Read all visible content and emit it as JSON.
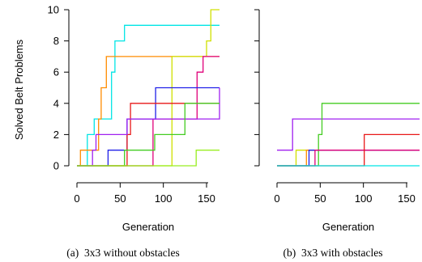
{
  "chart_data": [
    {
      "type": "line",
      "step": true,
      "caption": "(a)  3x3 without obstacles",
      "xlabel": "Generation",
      "ylabel": "Solved Belt Problems",
      "xlim": [
        0,
        165
      ],
      "ylim": [
        0,
        10
      ],
      "xticks": [
        "0",
        "50",
        "100",
        "150"
      ],
      "yticks": [
        "0",
        "2",
        "4",
        "6",
        "8",
        "10"
      ],
      "grid": false,
      "series": [
        {
          "color": "#00e5e5",
          "x": [
            0,
            10,
            12,
            20,
            38,
            40,
            44,
            51,
            55,
            165
          ],
          "y": [
            0,
            0,
            2,
            3,
            3,
            6,
            8,
            8,
            9,
            9
          ]
        },
        {
          "color": "#ff8c00",
          "x": [
            0,
            4,
            8,
            25,
            28,
            30,
            34,
            165
          ],
          "y": [
            0,
            1,
            1,
            3,
            5,
            5,
            7,
            7
          ]
        },
        {
          "color": "#d0e000",
          "x": [
            0,
            5,
            30,
            108,
            110,
            140,
            150,
            155,
            165
          ],
          "y": [
            0,
            0,
            0,
            0,
            7,
            7,
            8,
            10,
            10
          ]
        },
        {
          "color": "#e0007a",
          "x": [
            0,
            85,
            88,
            135,
            139,
            146,
            165
          ],
          "y": [
            0,
            0,
            3,
            3,
            6,
            7,
            7
          ]
        },
        {
          "color": "#2020e8",
          "x": [
            0,
            32,
            36,
            55,
            58,
            88,
            91,
            165
          ],
          "y": [
            0,
            0,
            1,
            1,
            3,
            3,
            5,
            5
          ]
        },
        {
          "color": "#e81818",
          "x": [
            0,
            25,
            58,
            62,
            88,
            165
          ],
          "y": [
            0,
            0,
            2,
            4,
            4,
            4
          ]
        },
        {
          "color": "#a020f0",
          "x": [
            0,
            18,
            22,
            52,
            58,
            163,
            165
          ],
          "y": [
            0,
            1,
            2,
            2,
            3,
            3,
            5
          ]
        },
        {
          "color": "#44cc22",
          "x": [
            0,
            40,
            55,
            60,
            90,
            95,
            120,
            125,
            165
          ],
          "y": [
            0,
            0,
            1,
            1,
            2,
            2,
            2,
            4,
            4
          ]
        },
        {
          "color": "#99ee22",
          "x": [
            0,
            135,
            138,
            165
          ],
          "y": [
            0,
            0,
            1,
            1
          ]
        }
      ]
    },
    {
      "type": "line",
      "step": true,
      "caption": "(b)  3x3 with obstacles",
      "xlabel": "Generation",
      "ylabel": "",
      "xlim": [
        0,
        165
      ],
      "ylim": [
        0,
        10
      ],
      "xticks": [
        "0",
        "50",
        "100",
        "150"
      ],
      "yticks": [],
      "grid": false,
      "series": [
        {
          "color": "#a020f0",
          "x": [
            0,
            15,
            18,
            165
          ],
          "y": [
            1,
            1,
            3,
            3
          ]
        },
        {
          "color": "#44cc22",
          "x": [
            0,
            45,
            48,
            52,
            165
          ],
          "y": [
            0,
            0,
            2,
            4,
            4
          ]
        },
        {
          "color": "#d0e000",
          "x": [
            0,
            18,
            22,
            165
          ],
          "y": [
            0,
            0,
            1,
            1
          ]
        },
        {
          "color": "#ff8c00",
          "x": [
            0,
            30,
            34,
            165
          ],
          "y": [
            0,
            0,
            1,
            1
          ]
        },
        {
          "color": "#2020e8",
          "x": [
            0,
            33,
            37,
            165
          ],
          "y": [
            0,
            0,
            1,
            1
          ]
        },
        {
          "color": "#e0007a",
          "x": [
            0,
            40,
            44,
            165
          ],
          "y": [
            0,
            0,
            1,
            1
          ]
        },
        {
          "color": "#e81818",
          "x": [
            0,
            98,
            101,
            165
          ],
          "y": [
            0,
            0,
            2,
            2
          ]
        },
        {
          "color": "#00e5e5",
          "x": [
            0,
            165
          ],
          "y": [
            0,
            0
          ]
        }
      ]
    }
  ]
}
